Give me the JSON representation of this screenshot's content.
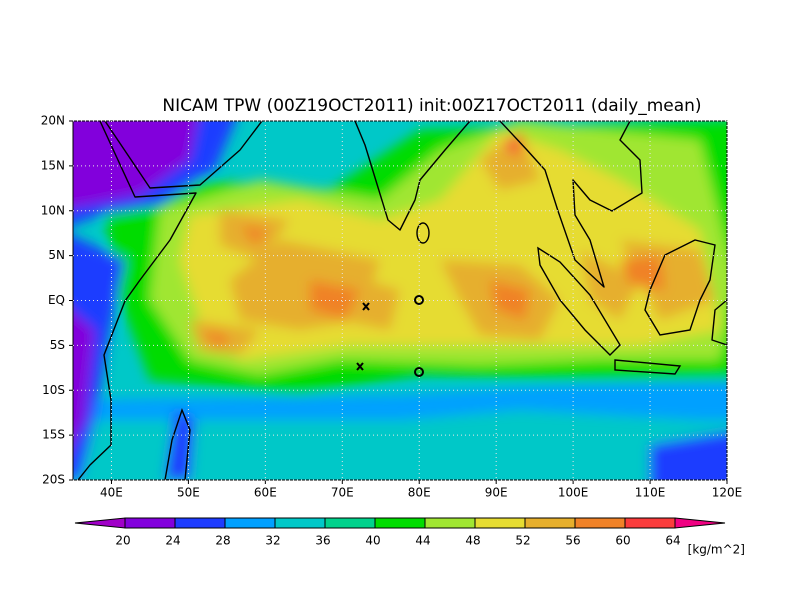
{
  "chart_data": {
    "type": "contour_map",
    "title": "NICAM TPW (00Z19OCT2011) init:00Z17OCT2011 (daily_mean)",
    "xlim": [
      35,
      120
    ],
    "ylim": [
      -20,
      20
    ],
    "xticks": [
      {
        "value": 40,
        "label": "40E"
      },
      {
        "value": 50,
        "label": "50E"
      },
      {
        "value": 60,
        "label": "60E"
      },
      {
        "value": 70,
        "label": "70E"
      },
      {
        "value": 80,
        "label": "80E"
      },
      {
        "value": 90,
        "label": "90E"
      },
      {
        "value": 100,
        "label": "100E"
      },
      {
        "value": 110,
        "label": "110E"
      },
      {
        "value": 120,
        "label": "120E"
      }
    ],
    "yticks": [
      {
        "value": -20,
        "label": "20S"
      },
      {
        "value": -15,
        "label": "15S"
      },
      {
        "value": -10,
        "label": "10S"
      },
      {
        "value": -5,
        "label": "5S"
      },
      {
        "value": 0,
        "label": "EQ"
      },
      {
        "value": 5,
        "label": "5N"
      },
      {
        "value": 10,
        "label": "10N"
      },
      {
        "value": 15,
        "label": "15N"
      },
      {
        "value": 20,
        "label": "20N"
      }
    ],
    "grid": true,
    "colorbar": {
      "levels": [
        20,
        24,
        28,
        32,
        36,
        40,
        44,
        48,
        52,
        56,
        60,
        64
      ],
      "colors": [
        "#a000c8",
        "#8200dc",
        "#1e3cff",
        "#00a0ff",
        "#00c8c8",
        "#00d28c",
        "#00dc00",
        "#a0e632",
        "#e6dc32",
        "#e6af2d",
        "#f08228",
        "#fa3c3c",
        "#f00082"
      ],
      "unit": "[kg/m^2]"
    }
  }
}
